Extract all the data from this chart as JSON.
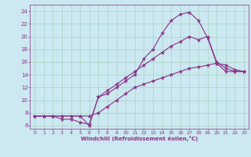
{
  "xlabel": "Windchill (Refroidissement éolien,°C)",
  "background_color": "#cce8f0",
  "grid_color": "#b0d4cc",
  "line_color": "#883388",
  "xlim": [
    -0.5,
    23.5
  ],
  "ylim": [
    5.5,
    25.0
  ],
  "xticks": [
    0,
    1,
    2,
    3,
    4,
    5,
    6,
    7,
    8,
    9,
    10,
    11,
    12,
    13,
    14,
    15,
    16,
    17,
    18,
    19,
    20,
    21,
    22,
    23
  ],
  "yticks": [
    6,
    8,
    10,
    12,
    14,
    16,
    18,
    20,
    22,
    24
  ],
  "series": [
    {
      "x": [
        0,
        1,
        2,
        3,
        4,
        5,
        6,
        7,
        8,
        9,
        10,
        11,
        12,
        13,
        14,
        15,
        16,
        17,
        18,
        19,
        20,
        21,
        22,
        23
      ],
      "y": [
        7.5,
        7.5,
        7.5,
        7.0,
        7.0,
        6.5,
        6.2,
        10.5,
        11.0,
        12.0,
        13.0,
        14.0,
        16.5,
        18.0,
        20.5,
        22.5,
        23.5,
        23.8,
        22.5,
        19.8,
        15.8,
        14.5,
        14.5,
        14.5
      ]
    },
    {
      "x": [
        0,
        1,
        2,
        3,
        4,
        5,
        6,
        7,
        8,
        9,
        10,
        11,
        12,
        13,
        14,
        15,
        16,
        17,
        18,
        19,
        20,
        21,
        22,
        23
      ],
      "y": [
        7.5,
        7.5,
        7.5,
        7.5,
        7.5,
        7.5,
        6.0,
        10.5,
        11.5,
        12.5,
        13.5,
        14.5,
        15.5,
        16.5,
        17.5,
        18.5,
        19.2,
        20.0,
        19.5,
        20.0,
        16.0,
        15.0,
        14.5,
        14.5
      ]
    },
    {
      "x": [
        0,
        1,
        2,
        3,
        4,
        5,
        6,
        7,
        8,
        9,
        10,
        11,
        12,
        13,
        14,
        15,
        16,
        17,
        18,
        19,
        20,
        21,
        22,
        23
      ],
      "y": [
        7.5,
        7.5,
        7.5,
        7.5,
        7.5,
        7.5,
        7.5,
        8.0,
        9.0,
        10.0,
        11.0,
        12.0,
        12.5,
        13.0,
        13.5,
        14.0,
        14.5,
        15.0,
        15.2,
        15.5,
        15.8,
        15.5,
        14.8,
        14.5
      ]
    }
  ]
}
